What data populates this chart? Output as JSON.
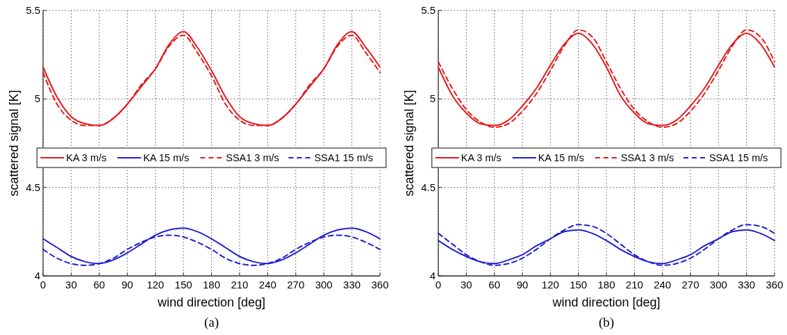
{
  "chart_data": [
    {
      "type": "line",
      "xlabel": "wind direction [deg]",
      "ylabel": "scattered signal [K]",
      "annotations": [
        "(a)"
      ],
      "xlim": [
        0,
        360
      ],
      "xticks": [
        0,
        30,
        60,
        90,
        120,
        150,
        180,
        210,
        240,
        270,
        300,
        330,
        360
      ],
      "ylim": [
        4,
        5.5
      ],
      "yticks": [
        4,
        4.5,
        5,
        5.5
      ],
      "grid": true,
      "legend": "center",
      "x": [
        0,
        15,
        30,
        45,
        60,
        75,
        90,
        105,
        120,
        135,
        150,
        165,
        180,
        195,
        210,
        225,
        240,
        255,
        270,
        285,
        300,
        315,
        330,
        345,
        360
      ],
      "series": [
        {
          "name": "KA 3 m/s",
          "color": "#e41a1c",
          "line_style": "solid",
          "values": [
            5.18,
            5.01,
            4.9,
            4.86,
            4.85,
            4.89,
            4.97,
            5.07,
            5.17,
            5.31,
            5.38,
            5.29,
            5.16,
            5.01,
            4.9,
            4.86,
            4.85,
            4.89,
            4.97,
            5.07,
            5.17,
            5.31,
            5.38,
            5.29,
            5.18
          ]
        },
        {
          "name": "KA 15 m/s",
          "color": "#1f1fd0",
          "line_style": "solid",
          "values": [
            4.21,
            4.16,
            4.11,
            4.08,
            4.07,
            4.09,
            4.13,
            4.18,
            4.23,
            4.26,
            4.27,
            4.25,
            4.21,
            4.16,
            4.11,
            4.08,
            4.07,
            4.09,
            4.13,
            4.18,
            4.23,
            4.26,
            4.27,
            4.25,
            4.21
          ]
        },
        {
          "name": "SSA1 3 m/s",
          "color": "#e41a1c",
          "line_style": "dashed",
          "values": [
            5.15,
            4.97,
            4.88,
            4.85,
            4.85,
            4.89,
            4.97,
            5.08,
            5.17,
            5.3,
            5.36,
            5.26,
            5.13,
            4.97,
            4.88,
            4.85,
            4.85,
            4.89,
            4.97,
            5.08,
            5.17,
            5.3,
            5.36,
            5.26,
            5.15
          ]
        },
        {
          "name": "SSA1 15 m/s",
          "color": "#1f1fd0",
          "line_style": "dashed",
          "values": [
            4.15,
            4.1,
            4.07,
            4.06,
            4.07,
            4.1,
            4.15,
            4.19,
            4.22,
            4.23,
            4.22,
            4.19,
            4.15,
            4.1,
            4.07,
            4.06,
            4.07,
            4.1,
            4.15,
            4.19,
            4.22,
            4.23,
            4.22,
            4.19,
            4.15
          ]
        }
      ]
    },
    {
      "type": "line",
      "xlabel": "wind direction [deg]",
      "ylabel": "scattered signal [K]",
      "annotations": [
        "(b)"
      ],
      "xlim": [
        0,
        360
      ],
      "xticks": [
        0,
        30,
        60,
        90,
        120,
        150,
        180,
        210,
        240,
        270,
        300,
        330,
        360
      ],
      "ylim": [
        4,
        5.5
      ],
      "yticks": [
        4,
        4.5,
        5,
        5.5
      ],
      "grid": true,
      "legend": "center",
      "x": [
        0,
        15,
        30,
        45,
        60,
        75,
        90,
        105,
        120,
        135,
        150,
        165,
        180,
        195,
        210,
        225,
        240,
        255,
        270,
        285,
        300,
        315,
        330,
        345,
        360
      ],
      "series": [
        {
          "name": "KA 3 m/s",
          "color": "#e41a1c",
          "line_style": "solid",
          "values": [
            5.18,
            5.02,
            4.92,
            4.86,
            4.85,
            4.88,
            4.96,
            5.06,
            5.19,
            5.31,
            5.37,
            5.31,
            5.18,
            5.02,
            4.92,
            4.86,
            4.85,
            4.88,
            4.96,
            5.06,
            5.19,
            5.31,
            5.37,
            5.31,
            5.18
          ]
        },
        {
          "name": "KA 15 m/s",
          "color": "#1f1fd0",
          "line_style": "solid",
          "values": [
            4.2,
            4.15,
            4.11,
            4.08,
            4.07,
            4.09,
            4.12,
            4.17,
            4.21,
            4.25,
            4.26,
            4.24,
            4.2,
            4.15,
            4.11,
            4.08,
            4.07,
            4.09,
            4.12,
            4.17,
            4.21,
            4.25,
            4.26,
            4.24,
            4.2
          ]
        },
        {
          "name": "SSA1 3 m/s",
          "color": "#e41a1c",
          "line_style": "dashed",
          "values": [
            5.21,
            5.06,
            4.94,
            4.87,
            4.84,
            4.86,
            4.93,
            5.03,
            5.16,
            5.3,
            5.39,
            5.35,
            5.21,
            5.06,
            4.94,
            4.87,
            4.84,
            4.86,
            4.93,
            5.03,
            5.16,
            5.3,
            5.39,
            5.35,
            5.21
          ]
        },
        {
          "name": "SSA1 15 m/s",
          "color": "#1f1fd0",
          "line_style": "dashed",
          "values": [
            4.24,
            4.18,
            4.12,
            4.08,
            4.06,
            4.07,
            4.1,
            4.15,
            4.21,
            4.26,
            4.29,
            4.28,
            4.24,
            4.18,
            4.12,
            4.08,
            4.06,
            4.07,
            4.1,
            4.15,
            4.21,
            4.26,
            4.29,
            4.28,
            4.24
          ]
        }
      ]
    }
  ]
}
